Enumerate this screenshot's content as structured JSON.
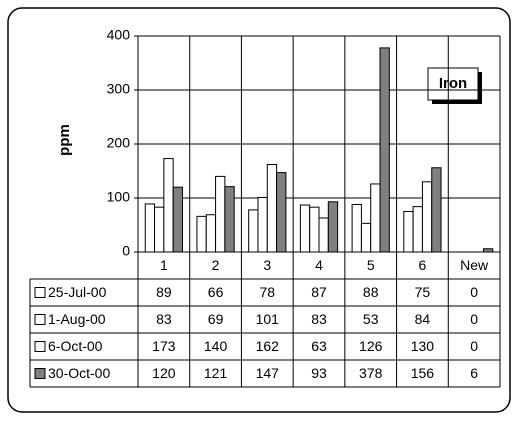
{
  "chart_data": {
    "type": "bar",
    "title": "Iron",
    "ylabel": "ppm",
    "categories": [
      "1",
      "2",
      "3",
      "4",
      "5",
      "6",
      "New"
    ],
    "series": [
      {
        "name": "25-Jul-00",
        "color": "#ffffff",
        "values": [
          89,
          66,
          78,
          87,
          88,
          75,
          0
        ]
      },
      {
        "name": "1-Aug-00",
        "color": "#ffffff",
        "values": [
          83,
          69,
          101,
          83,
          53,
          84,
          0
        ]
      },
      {
        "name": "6-Oct-00",
        "color": "#ffffff",
        "values": [
          173,
          140,
          162,
          63,
          126,
          130,
          0
        ]
      },
      {
        "name": "30-Oct-00",
        "color": "#808080",
        "values": [
          120,
          121,
          147,
          93,
          378,
          156,
          6
        ]
      }
    ],
    "ylim": [
      0,
      400
    ],
    "yticks": [
      0,
      100,
      200,
      300,
      400
    ],
    "grid": true
  }
}
